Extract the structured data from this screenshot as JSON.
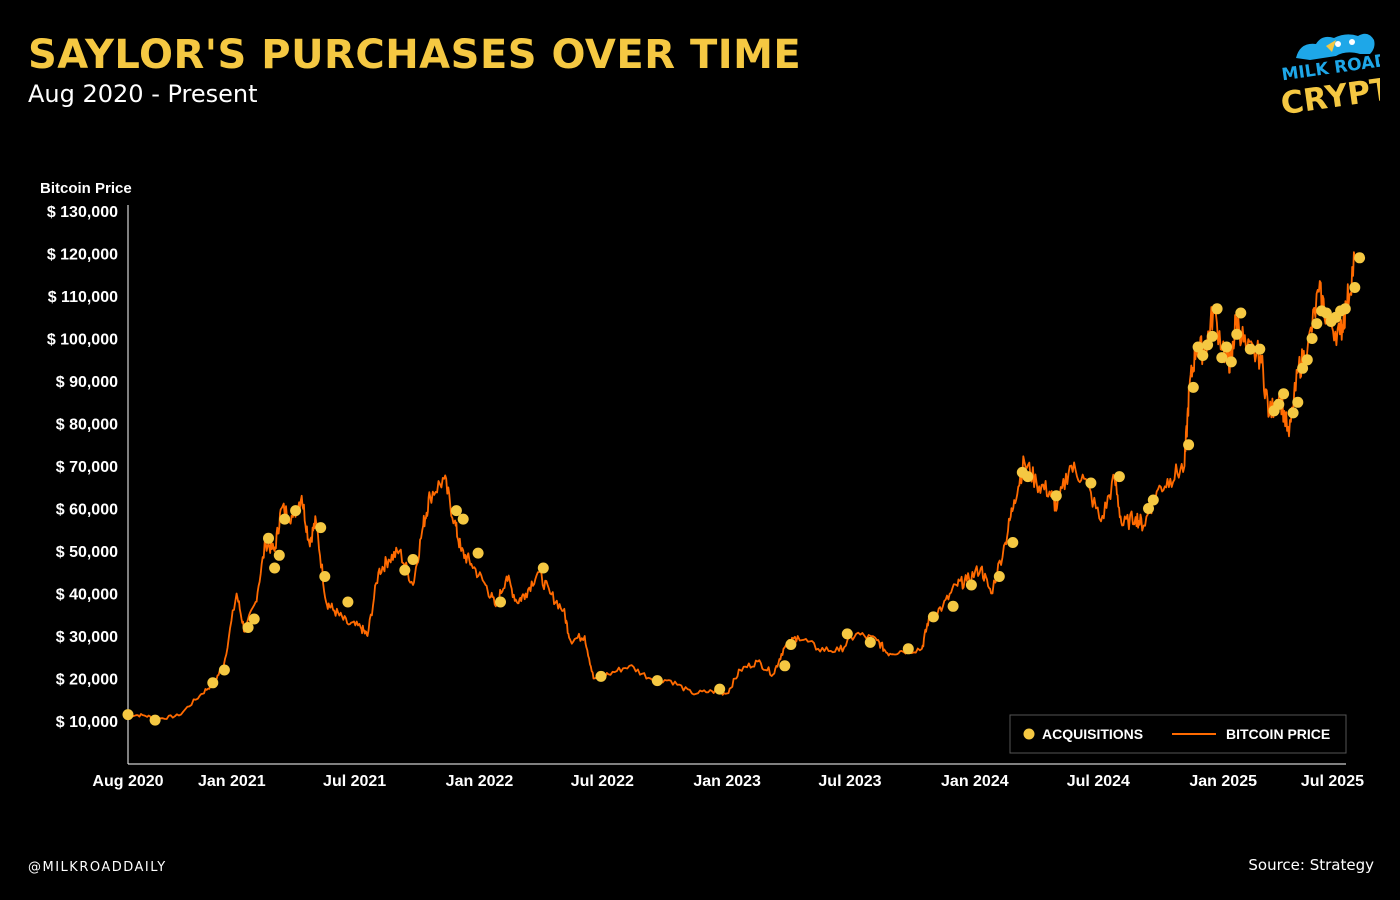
{
  "header": {
    "title": "SAYLOR'S PURCHASES OVER TIME",
    "subtitle": "Aug 2020 - Present"
  },
  "brand": {
    "line1": "MILK ROAD",
    "line2": "CRYPTO",
    "color": "#f5c842",
    "accent": "#1ea7e8"
  },
  "footer": {
    "handle": "@MILKROADDAILY",
    "source": "Source: Strategy"
  },
  "colors": {
    "price_line": "#ff6a00",
    "marker": "#f5c842",
    "title": "#f5c842"
  },
  "chart_data": {
    "type": "line",
    "ylabel": "Bitcoin Price",
    "xlabel": "",
    "title": "",
    "ylim": [
      0,
      130000
    ],
    "yticks": [
      10000,
      20000,
      30000,
      40000,
      50000,
      60000,
      70000,
      80000,
      90000,
      100000,
      110000,
      120000,
      130000
    ],
    "ytick_labels": [
      "$ 10,000",
      "$ 20,000",
      "$ 30,000",
      "$ 40,000",
      "$ 50,000",
      "$ 60,000",
      "$ 70,000",
      "$ 80,000",
      "$ 90,000",
      "$ 100,000",
      "$ 110,000",
      "$ 120,000",
      "$ 130,000"
    ],
    "xlim": [
      "2020-08-01",
      "2025-07-01"
    ],
    "xticks": [
      "2020-08-01",
      "2021-01-01",
      "2021-07-01",
      "2022-01-01",
      "2022-07-01",
      "2023-01-01",
      "2023-07-01",
      "2024-01-01",
      "2024-07-01",
      "2025-01-01",
      "2025-07-01"
    ],
    "xtick_labels": [
      "Aug 2020",
      "Jan 2021",
      "Jul 2021",
      "Jan 2022",
      "Jul 2022",
      "Jan 2023",
      "Jul 2023",
      "Jan 2024",
      "Jul 2024",
      "Jan 2025",
      "Jul 2025"
    ],
    "legend": {
      "position": "bottom-right",
      "entries": [
        "ACQUISITIONS",
        "BITCOIN PRICE"
      ]
    },
    "grid": false,
    "series": [
      {
        "name": "BITCOIN PRICE",
        "kind": "line",
        "x": [
          "2020-08-01",
          "2020-08-25",
          "2020-09-15",
          "2020-10-15",
          "2020-11-15",
          "2020-12-05",
          "2020-12-20",
          "2021-01-08",
          "2021-01-20",
          "2021-02-05",
          "2021-02-20",
          "2021-03-05",
          "2021-03-15",
          "2021-04-01",
          "2021-04-14",
          "2021-04-25",
          "2021-05-05",
          "2021-05-20",
          "2021-06-01",
          "2021-06-20",
          "2021-07-10",
          "2021-07-20",
          "2021-08-05",
          "2021-08-20",
          "2021-09-05",
          "2021-09-25",
          "2021-10-10",
          "2021-10-20",
          "2021-11-10",
          "2021-11-25",
          "2021-12-05",
          "2021-12-20",
          "2022-01-10",
          "2022-01-25",
          "2022-02-10",
          "2022-02-25",
          "2022-03-10",
          "2022-03-28",
          "2022-04-15",
          "2022-05-05",
          "2022-05-15",
          "2022-06-05",
          "2022-06-18",
          "2022-07-10",
          "2022-08-10",
          "2022-09-10",
          "2022-10-10",
          "2022-11-10",
          "2022-12-10",
          "2023-01-01",
          "2023-01-20",
          "2023-02-15",
          "2023-03-10",
          "2023-03-25",
          "2023-04-15",
          "2023-05-15",
          "2023-06-15",
          "2023-07-10",
          "2023-08-10",
          "2023-08-25",
          "2023-09-15",
          "2023-10-15",
          "2023-10-25",
          "2023-11-15",
          "2023-12-05",
          "2023-12-20",
          "2024-01-10",
          "2024-01-25",
          "2024-02-15",
          "2024-02-28",
          "2024-03-14",
          "2024-04-01",
          "2024-04-20",
          "2024-05-01",
          "2024-05-20",
          "2024-06-10",
          "2024-07-05",
          "2024-07-25",
          "2024-08-05",
          "2024-08-25",
          "2024-09-06",
          "2024-09-25",
          "2024-10-15",
          "2024-11-05",
          "2024-11-12",
          "2024-11-22",
          "2024-12-05",
          "2024-12-17",
          "2025-01-05",
          "2025-01-13",
          "2025-01-20",
          "2025-02-05",
          "2025-02-25",
          "2025-03-10",
          "2025-03-25",
          "2025-04-08",
          "2025-04-22",
          "2025-05-05",
          "2025-05-22",
          "2025-06-05",
          "2025-06-22",
          "2025-07-01",
          "2025-07-14"
        ],
        "values": [
          11500,
          11300,
          10500,
          11300,
          16000,
          19000,
          23000,
          40000,
          31000,
          38000,
          52000,
          50000,
          60000,
          58000,
          63000,
          52000,
          57000,
          38000,
          36000,
          33000,
          32000,
          30000,
          45000,
          48000,
          50000,
          42000,
          56000,
          63000,
          67000,
          57000,
          50000,
          47000,
          42000,
          37000,
          44000,
          38000,
          40000,
          45000,
          40000,
          36000,
          29000,
          30000,
          20000,
          21000,
          23000,
          20000,
          19500,
          16500,
          17000,
          16500,
          22000,
          24000,
          21000,
          27000,
          30000,
          27000,
          26500,
          30500,
          29000,
          26000,
          26500,
          27000,
          34000,
          37000,
          42000,
          43000,
          46000,
          40000,
          52000,
          62000,
          71000,
          66000,
          64000,
          60000,
          70000,
          67000,
          57000,
          67000,
          56000,
          58000,
          56000,
          64000,
          67000,
          70000,
          88000,
          98000,
          97000,
          106000,
          96000,
          94000,
          105000,
          97000,
          96000,
          82000,
          87000,
          77000,
          93000,
          97000,
          111000,
          104000,
          101000,
          107000,
          119000
        ]
      },
      {
        "name": "ACQUISITIONS",
        "kind": "scatter",
        "x": [
          "2020-08-01",
          "2020-09-10",
          "2020-12-04",
          "2020-12-21",
          "2021-01-25",
          "2021-02-03",
          "2021-02-24",
          "2021-03-05",
          "2021-03-12",
          "2021-03-20",
          "2021-04-05",
          "2021-05-12",
          "2021-05-18",
          "2021-06-21",
          "2021-09-13",
          "2021-09-25",
          "2021-11-28",
          "2021-12-08",
          "2021-12-30",
          "2022-02-01",
          "2022-04-05",
          "2022-06-29",
          "2022-09-20",
          "2022-12-21",
          "2023-03-27",
          "2023-04-05",
          "2023-06-27",
          "2023-07-31",
          "2023-09-25",
          "2023-11-01",
          "2023-11-30",
          "2023-12-27",
          "2024-02-06",
          "2024-02-26",
          "2024-03-11",
          "2024-03-19",
          "2024-04-30",
          "2024-06-20",
          "2024-08-01",
          "2024-09-13",
          "2024-09-20",
          "2024-11-11",
          "2024-11-18",
          "2024-11-25",
          "2024-12-02",
          "2024-12-09",
          "2024-12-16",
          "2024-12-23",
          "2024-12-30",
          "2025-01-06",
          "2025-01-13",
          "2025-01-21",
          "2025-01-27",
          "2025-02-10",
          "2025-02-24",
          "2025-03-17",
          "2025-03-24",
          "2025-03-31",
          "2025-04-14",
          "2025-04-21",
          "2025-04-28",
          "2025-05-05",
          "2025-05-12",
          "2025-05-19",
          "2025-05-26",
          "2025-06-02",
          "2025-06-09",
          "2025-06-16",
          "2025-06-23",
          "2025-06-30",
          "2025-07-14",
          "2025-07-21"
        ],
        "values": [
          11500,
          10200,
          19000,
          22000,
          32000,
          34000,
          53000,
          46000,
          49000,
          57500,
          59500,
          55500,
          44000,
          38000,
          45500,
          48000,
          59500,
          57500,
          49500,
          38000,
          46000,
          20500,
          19500,
          17500,
          23000,
          28000,
          30500,
          28500,
          27000,
          34500,
          37000,
          42000,
          44000,
          52000,
          68500,
          67500,
          63000,
          66000,
          67500,
          60000,
          62000,
          75000,
          88500,
          98000,
          96000,
          98500,
          100500,
          107000,
          95500,
          98000,
          94500,
          101000,
          106000,
          97500,
          97500,
          83000,
          84500,
          87000,
          82500,
          85000,
          93000,
          95000,
          100000,
          103500,
          106500,
          106000,
          104000,
          105000,
          106500,
          107000,
          112000,
          119000
        ]
      }
    ]
  }
}
